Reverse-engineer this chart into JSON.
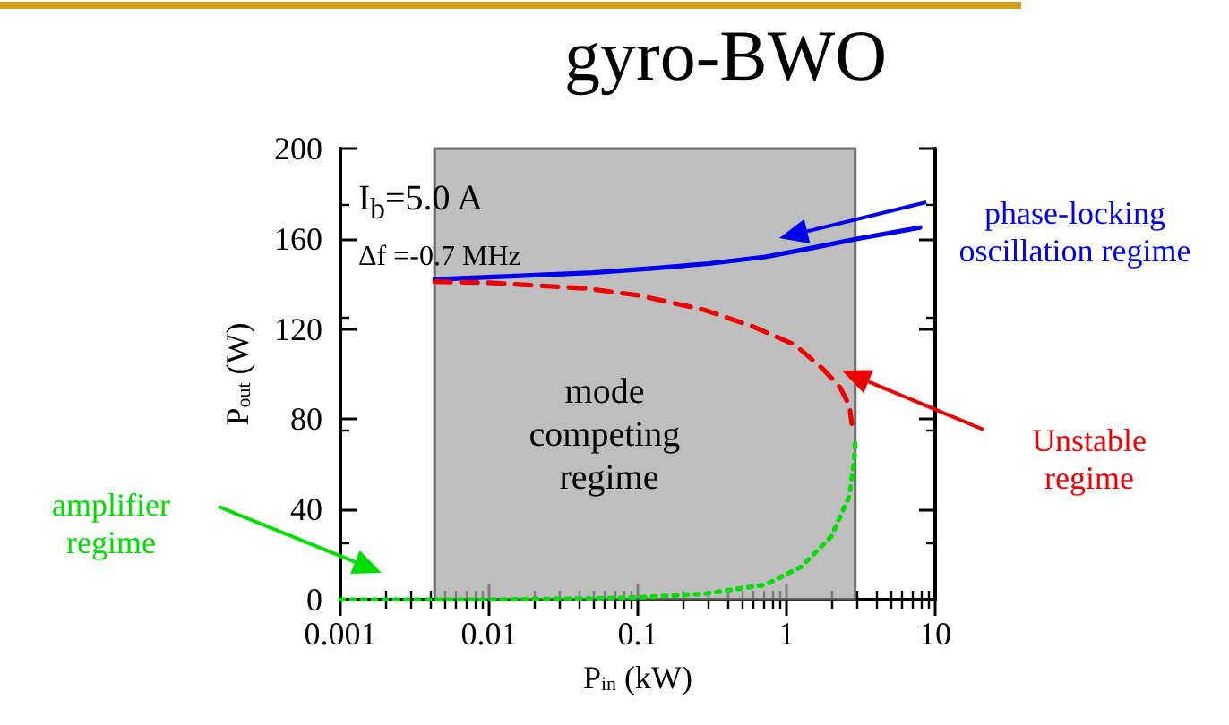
{
  "chart_data": {
    "type": "line",
    "title": "gyro-BWO",
    "xlabel": "P$_{in}$ (kW)",
    "ylabel": "P$_{out}$ (W)",
    "log": "x",
    "xlim": [
      0.001,
      10
    ],
    "xticks": [
      0.001,
      0.01,
      0.1,
      1,
      10
    ],
    "ylim": [
      0,
      200
    ],
    "yticks": [
      0,
      40,
      80,
      120,
      160,
      200
    ],
    "grid": false,
    "marker": "none",
    "series": [
      {
        "color": "#0000ee",
        "line_style": "solid",
        "x": [
          0.0043,
          0.01,
          0.05,
          0.13,
          0.3,
          0.72,
          1.5,
          3,
          7.9
        ],
        "values": [
          142,
          143,
          145,
          147,
          149,
          152,
          156,
          160,
          165
        ]
      },
      {
        "color": "#ee0000",
        "line_style": "dashed",
        "x": [
          0.0043,
          0.01,
          0.045,
          0.1,
          0.28,
          0.6,
          1.14,
          1.78,
          2.3,
          2.65,
          2.75
        ],
        "values": [
          141,
          140.5,
          138,
          135,
          128.5,
          121,
          113,
          102,
          94,
          86,
          78
        ]
      },
      {
        "color": "#00dd00",
        "line_style": "dotted",
        "x": [
          0.001,
          0.01,
          0.05,
          0.1,
          0.28,
          0.72,
          1.25,
          2.0,
          2.65,
          2.85,
          2.9
        ],
        "values": [
          0,
          0,
          0.5,
          1,
          2.6,
          6.6,
          14.5,
          28,
          46,
          62,
          70
        ]
      }
    ],
    "bands": [
      {
        "axis": "x",
        "from": 0.0043,
        "to": 2.9,
        "label": "mode competing regime",
        "color": "#a8a8a8"
      }
    ],
    "annotations": [
      "phase-locking oscillation regime",
      "Unstable regime",
      "amplifier regime",
      "I$_{b}$=5.0 A",
      "Δf =-0.7 MHz"
    ]
  }
}
